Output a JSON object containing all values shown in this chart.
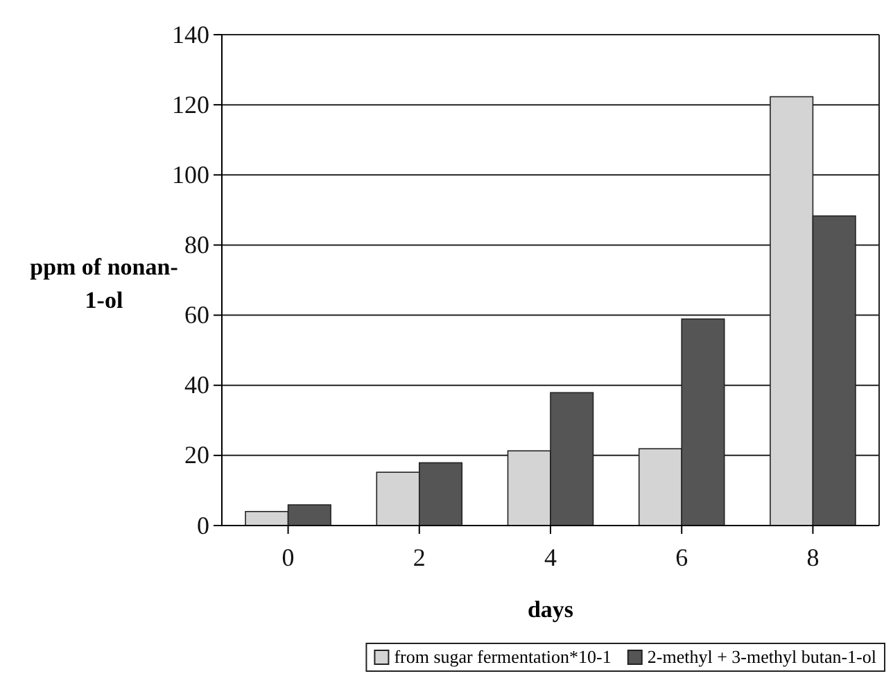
{
  "chart_data": {
    "type": "bar",
    "xlabel": "days",
    "ylabel": "ppm of nonan-1-ol",
    "categories": [
      "0",
      "2",
      "4",
      "6",
      "8"
    ],
    "series": [
      {
        "name": "from sugar fermentation*10-1",
        "color": "#d4d4d4",
        "values": [
          4,
          15.2,
          21.3,
          21.9,
          122.3
        ]
      },
      {
        "name": "2-methyl + 3-methyl butan-1-ol",
        "color": "#555555",
        "values": [
          5.9,
          17.9,
          37.9,
          58.9,
          88.3
        ]
      }
    ],
    "ylim": [
      0,
      140
    ],
    "yticks": [
      0,
      20,
      40,
      60,
      80,
      100,
      120,
      140
    ],
    "grid": "y",
    "legend": "bottom"
  }
}
